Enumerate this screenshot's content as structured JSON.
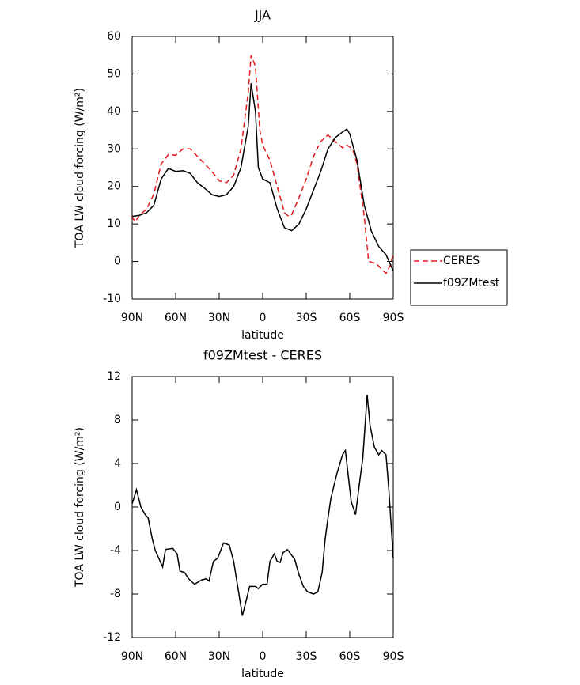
{
  "chart_data": [
    {
      "type": "line",
      "title": "JJA",
      "xlabel": "latitude",
      "ylabel": "TOA LW cloud forcing (W/m²)",
      "xlim": [
        90,
        -90
      ],
      "xticks": [
        {
          "value": 90,
          "label": "90N"
        },
        {
          "value": 60,
          "label": "60N"
        },
        {
          "value": 30,
          "label": "30N"
        },
        0,
        {
          "value": -30,
          "label": "30S"
        },
        {
          "value": -60,
          "label": "60S"
        },
        {
          "value": -90,
          "label": "90S"
        }
      ],
      "ylim": [
        -10,
        60
      ],
      "yticks": [
        -10,
        0,
        10,
        20,
        30,
        40,
        50,
        60
      ],
      "legend": "right",
      "series": [
        {
          "name": "CERES",
          "color": "#e31a1c",
          "dashed": true,
          "x": [
            90,
            88,
            85,
            80,
            75,
            70,
            65,
            60,
            55,
            50,
            45,
            40,
            35,
            30,
            25,
            20,
            15,
            10,
            8,
            5,
            2,
            0,
            -5,
            -10,
            -15,
            -18,
            -20,
            -25,
            -30,
            -35,
            -40,
            -45,
            -50,
            -55,
            -58,
            -62,
            -65,
            -70,
            -73,
            -78,
            -82,
            -85,
            -88,
            -90
          ],
          "values": [
            12,
            10.5,
            12.3,
            14,
            18,
            26,
            28.5,
            28.3,
            30,
            30,
            28,
            26,
            24,
            21.5,
            21,
            23,
            30,
            45,
            55,
            52,
            35,
            31,
            27,
            20,
            13,
            12,
            12.5,
            17,
            22,
            28,
            32,
            33.7,
            32,
            30.3,
            31,
            30,
            26,
            12,
            0,
            -0.5,
            -2,
            -3.2,
            -1,
            2
          ]
        },
        {
          "name": "f09ZMtest",
          "color": "#000000",
          "dashed": false,
          "x": [
            90,
            85,
            80,
            75,
            70,
            65,
            60,
            55,
            50,
            45,
            40,
            35,
            30,
            25,
            20,
            15,
            10,
            8,
            5,
            3,
            0,
            -5,
            -10,
            -15,
            -20,
            -25,
            -30,
            -35,
            -40,
            -45,
            -50,
            -55,
            -58,
            -60,
            -65,
            -70,
            -75,
            -80,
            -85,
            -90
          ],
          "values": [
            12,
            12.3,
            13,
            15,
            22,
            24.8,
            24,
            24.2,
            23.5,
            21,
            19.5,
            17.8,
            17.3,
            17.8,
            20,
            25,
            36,
            47.5,
            40,
            25,
            22,
            21,
            14,
            9,
            8.2,
            10,
            14,
            19,
            24,
            30,
            33,
            34.5,
            35.3,
            34,
            27,
            15,
            8,
            4,
            1.8,
            -2.5
          ]
        }
      ]
    },
    {
      "type": "line",
      "title": "f09ZMtest - CERES",
      "xlabel": "latitude",
      "ylabel": "TOA LW cloud forcing (W/m²)",
      "xlim": [
        90,
        -90
      ],
      "xticks": [
        {
          "value": 90,
          "label": "90N"
        },
        {
          "value": 60,
          "label": "60N"
        },
        {
          "value": 30,
          "label": "30N"
        },
        0,
        {
          "value": -30,
          "label": "30S"
        },
        {
          "value": -60,
          "label": "60S"
        },
        {
          "value": -90,
          "label": "90S"
        }
      ],
      "ylim": [
        -12,
        12
      ],
      "yticks": [
        -12,
        -8,
        -4,
        0,
        4,
        8,
        12
      ],
      "series": [
        {
          "color": "#000000",
          "dashed": false,
          "x": [
            90,
            87,
            84,
            81,
            79,
            76,
            74,
            69,
            67,
            62,
            59,
            57,
            54,
            51,
            47,
            42,
            39,
            37,
            34,
            31,
            27,
            23,
            20,
            17,
            14,
            9,
            5,
            3,
            0,
            -3,
            -5,
            -8,
            -10,
            -12,
            -14,
            -17,
            -22,
            -25,
            -28,
            -31,
            -35,
            -38,
            -41,
            -43,
            -45,
            -47,
            -51,
            -55,
            -57,
            -61,
            -64,
            -67,
            -69,
            -72,
            -74,
            -77,
            -80,
            -82,
            -85,
            -87,
            -90
          ],
          "values": [
            0.3,
            1.6,
            0,
            -0.7,
            -1,
            -3,
            -4,
            -5.5,
            -3.9,
            -3.8,
            -4.3,
            -5.9,
            -6,
            -6.6,
            -7.1,
            -6.7,
            -6.6,
            -6.8,
            -5,
            -4.7,
            -3.3,
            -3.5,
            -5,
            -7.5,
            -10,
            -7.3,
            -7.3,
            -7.5,
            -7.1,
            -7.1,
            -5,
            -4.3,
            -5,
            -5.1,
            -4.2,
            -3.9,
            -4.8,
            -6.2,
            -7.3,
            -7.8,
            -8,
            -7.8,
            -6,
            -3,
            -1,
            0.8,
            3,
            4.8,
            5.2,
            0.5,
            -0.7,
            2.5,
            4.5,
            10.3,
            7.5,
            5.5,
            4.8,
            5.2,
            4.8,
            1.5,
            -4.7
          ]
        }
      ]
    }
  ]
}
